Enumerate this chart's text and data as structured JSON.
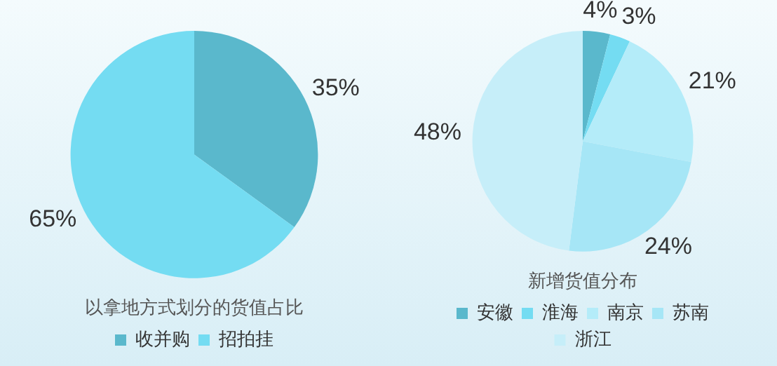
{
  "chart_data": [
    {
      "type": "pie",
      "title": "以拿地方式划分的货值占比",
      "categories": [
        "收并购",
        "招拍挂"
      ],
      "values": [
        35,
        65
      ],
      "colors": [
        "#5ab8cc",
        "#74dcf2"
      ],
      "value_labels": [
        "35%",
        "65%"
      ],
      "legend": "bottom"
    },
    {
      "type": "pie",
      "title": "新增货值分布",
      "categories": [
        "安徽",
        "淮海",
        "南京",
        "苏南",
        "浙江"
      ],
      "values": [
        4,
        3,
        21,
        24,
        48
      ],
      "colors": [
        "#5ab8cc",
        "#74dcf2",
        "#b4ecf9",
        "#a6e6f6",
        "#c6eef9"
      ],
      "value_labels": [
        "4%",
        "3%",
        "21%",
        "24%",
        "48%"
      ],
      "legend": "bottom"
    }
  ]
}
